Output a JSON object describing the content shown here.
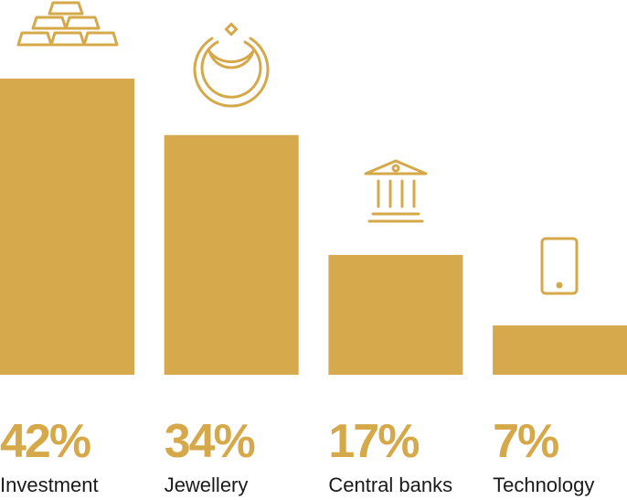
{
  "chart_data": {
    "type": "bar",
    "categories": [
      "Investment",
      "Jewellery",
      "Central banks",
      "Technology"
    ],
    "values": [
      42,
      34,
      17,
      7
    ],
    "value_labels": [
      "42%",
      "34%",
      "17%",
      "7%"
    ],
    "color": "#d6aa4c"
  }
}
